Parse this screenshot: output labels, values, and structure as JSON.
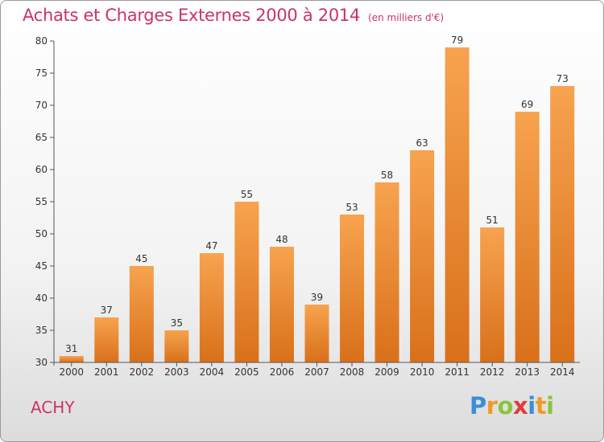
{
  "title": "Achats et Charges Externes 2000 à 2014",
  "subtitle": "(en milliers d'€)",
  "place": "ACHY",
  "logo": {
    "letters": [
      "P",
      "r",
      "o",
      "x",
      "i",
      "t",
      "i"
    ],
    "colors": [
      "#3a8fd8",
      "#f09a26",
      "#8ac43f",
      "#e23b3b",
      "#3a8fd8",
      "#f09a26",
      "#8ac43f"
    ]
  },
  "colors": {
    "title": "#cc3366",
    "bar_top": "#f7a34f",
    "bar_bottom": "#d9701a",
    "axis_text": "#333333"
  },
  "chart_data": {
    "type": "bar",
    "title": "Achats et Charges Externes 2000 à 2014",
    "subtitle": "(en milliers d'€)",
    "xlabel": "",
    "ylabel": "",
    "categories": [
      "2000",
      "2001",
      "2002",
      "2003",
      "2004",
      "2005",
      "2006",
      "2007",
      "2008",
      "2009",
      "2010",
      "2011",
      "2012",
      "2013",
      "2014"
    ],
    "values": [
      31,
      37,
      45,
      35,
      47,
      55,
      48,
      39,
      53,
      58,
      63,
      79,
      51,
      69,
      73
    ],
    "data_labels": [
      "31",
      "37",
      "45",
      "35",
      "47",
      "55",
      "48",
      "39",
      "53",
      "58",
      "63",
      "79",
      "51",
      "69",
      "73"
    ],
    "ylim": [
      30,
      80
    ],
    "yticks": [
      30,
      35,
      40,
      45,
      50,
      55,
      60,
      65,
      70,
      75,
      80
    ],
    "grid": false,
    "legend": "none"
  }
}
